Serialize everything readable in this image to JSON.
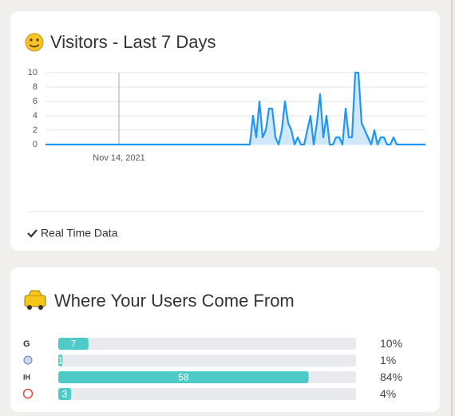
{
  "chart_data": [
    {
      "type": "line",
      "title": "Visitors - Last 7 Days",
      "x": [
        0,
        1,
        2,
        3,
        4,
        5,
        6,
        7,
        8,
        9,
        10,
        11,
        12,
        13,
        14,
        15,
        16,
        17,
        18,
        19,
        20,
        21,
        22,
        23,
        24,
        25,
        26,
        27,
        28,
        29,
        30,
        31,
        32,
        33,
        34,
        35,
        36,
        37,
        38,
        39,
        40,
        41,
        42,
        43,
        44,
        45,
        46,
        47,
        48,
        49,
        50,
        51,
        52,
        53,
        54,
        55,
        56,
        57,
        58,
        59,
        60,
        61,
        62,
        63,
        64,
        65,
        66,
        67,
        68,
        69,
        70,
        71,
        72,
        73,
        74,
        75,
        76,
        77,
        78,
        79,
        80,
        81,
        82,
        83,
        84,
        85,
        86,
        87,
        88,
        89,
        90,
        91,
        92,
        93,
        94,
        95,
        96,
        97,
        98,
        99,
        100,
        101,
        102,
        103,
        104,
        105,
        106,
        107,
        108,
        109,
        110,
        111,
        112,
        113,
        114,
        115,
        116,
        117,
        118,
        119
      ],
      "values": [
        0,
        0,
        0,
        0,
        0,
        0,
        0,
        0,
        0,
        0,
        0,
        0,
        0,
        0,
        0,
        0,
        0,
        0,
        0,
        0,
        0,
        0,
        0,
        0,
        0,
        0,
        0,
        0,
        0,
        0,
        0,
        0,
        0,
        0,
        0,
        0,
        0,
        0,
        0,
        0,
        0,
        0,
        0,
        0,
        0,
        0,
        0,
        0,
        0,
        0,
        0,
        0,
        0,
        0,
        0,
        0,
        0,
        0,
        0,
        0,
        0,
        0,
        0,
        0,
        0,
        4,
        1,
        6,
        1,
        2,
        5,
        5,
        1,
        0,
        2,
        6,
        3,
        2,
        0,
        1,
        0,
        0,
        2,
        4,
        0,
        3,
        7,
        1,
        4,
        0,
        0,
        1,
        1,
        0,
        5,
        1,
        1,
        10,
        10,
        3,
        2,
        1,
        0,
        2,
        0,
        1,
        1,
        0,
        0,
        1,
        0,
        0,
        0,
        0,
        0,
        0,
        0,
        0,
        0,
        0
      ],
      "color": "#2196f3",
      "xlim": [
        0,
        119
      ],
      "xticks": [
        {
          "value": 23,
          "label": "Nov 14, 2021"
        }
      ],
      "ylim": [
        0,
        10
      ],
      "yticks": [
        0,
        2,
        4,
        6,
        8,
        10
      ],
      "grid": true,
      "footer": "Real Time Data"
    },
    {
      "type": "bar",
      "title": "Where Your Users Come From",
      "categories": [
        null,
        null,
        null,
        null
      ],
      "values": [
        7,
        1,
        58,
        3
      ],
      "color": "#4ecbc8",
      "xlim": [
        0,
        69
      ],
      "percent_labels": [
        "10%",
        "1%",
        "84%",
        "4%"
      ]
    }
  ]
}
